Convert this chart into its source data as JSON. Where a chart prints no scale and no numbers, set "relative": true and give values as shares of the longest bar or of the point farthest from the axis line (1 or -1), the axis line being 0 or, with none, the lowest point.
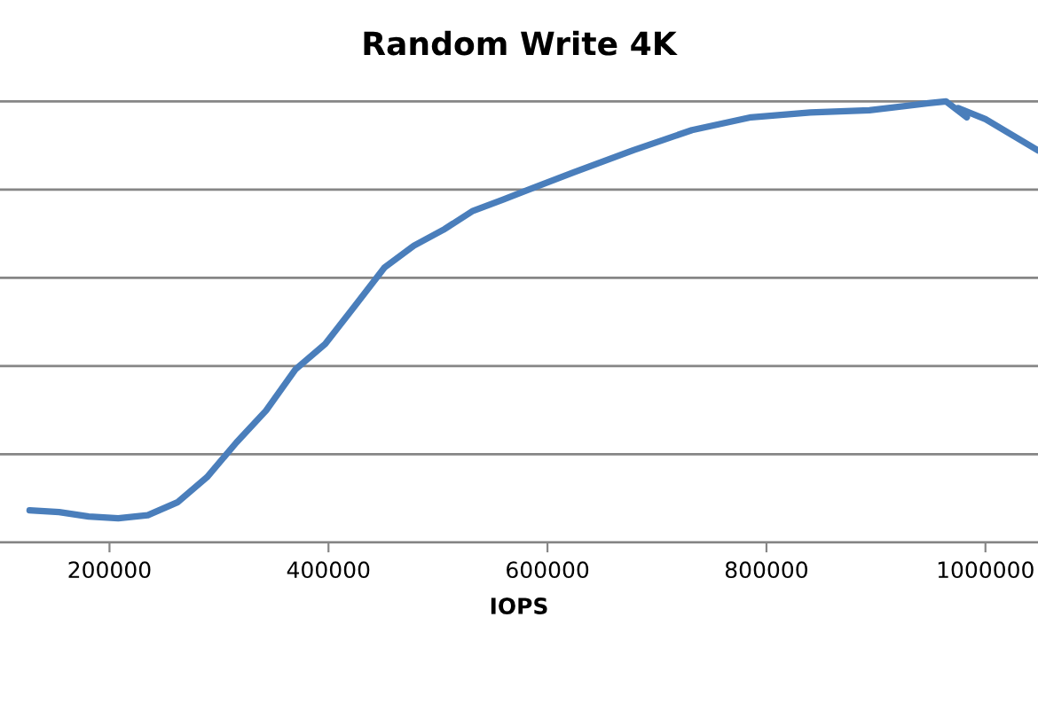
{
  "chart_data": {
    "type": "line",
    "title": "Random Write 4K",
    "xlabel": "IOPS",
    "relative": true,
    "grid": "y",
    "xlim": [
      100000,
      1048000
    ],
    "xticks": [
      200000,
      400000,
      600000,
      800000,
      1000000
    ],
    "x": [
      127000,
      154000,
      181000,
      208000,
      235000,
      262000,
      289000,
      316000,
      343000,
      370000,
      397000,
      424000,
      451000,
      478000,
      505000,
      532000,
      559000,
      586000,
      624000,
      678000,
      732000,
      786000,
      840000,
      894000,
      948000,
      964000,
      983000,
      975000,
      1000000,
      1048000
    ],
    "series": [
      {
        "color": "#4a7ebb",
        "values": [
          0.073,
          0.069,
          0.059,
          0.055,
          0.062,
          0.091,
          0.148,
          0.227,
          0.299,
          0.393,
          0.45,
          0.536,
          0.623,
          0.673,
          0.709,
          0.752,
          0.777,
          0.803,
          0.839,
          0.889,
          0.935,
          0.964,
          0.975,
          0.98,
          0.996,
          1.0,
          0.964,
          0.985,
          0.96,
          0.889
        ]
      }
    ]
  }
}
